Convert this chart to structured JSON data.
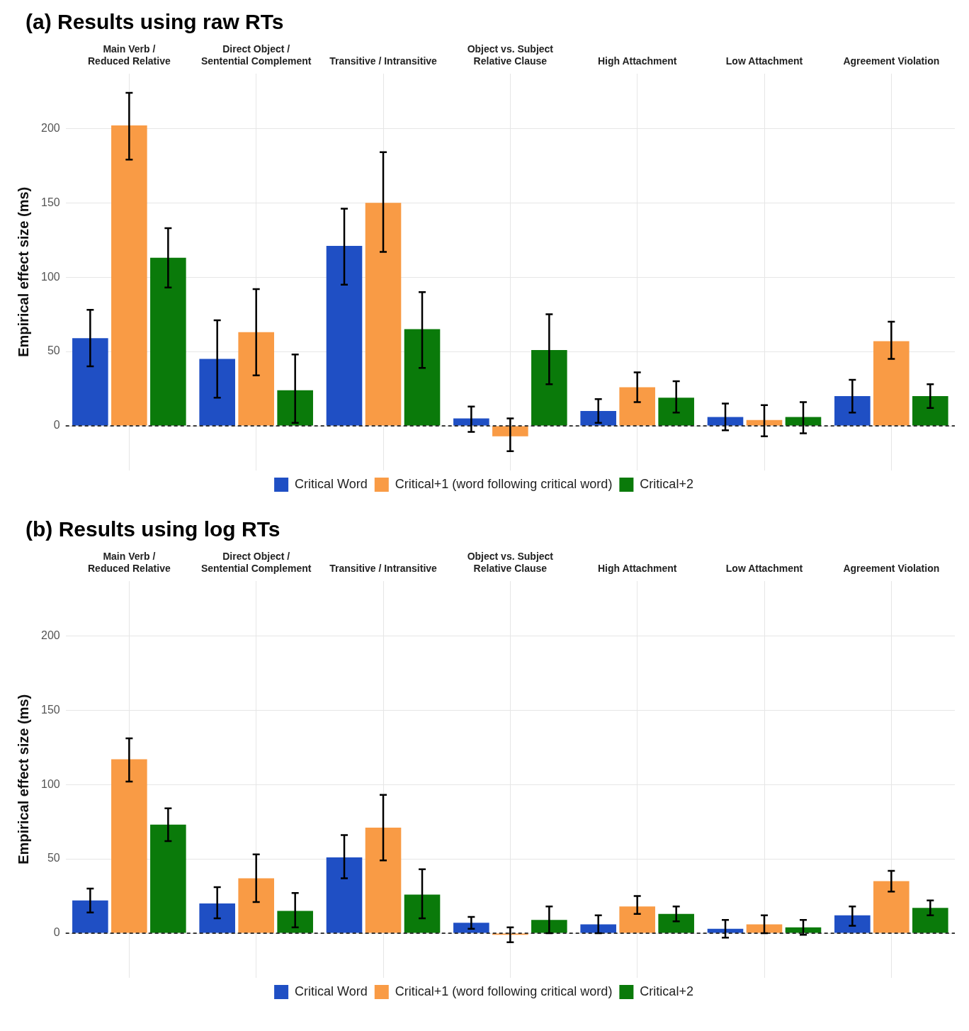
{
  "chart_data": [
    {
      "type": "bar",
      "title": "(a) Results using raw RTs",
      "ylabel": "Empirical effect size (ms)",
      "categories": [
        "Main Verb /\nReduced Relative",
        "Direct Object /\nSentential Complement",
        "Transitive / Intransitive",
        "Object vs. Subject\nRelative Clause",
        "High Attachment",
        "Low Attachment",
        "Agreement Violation"
      ],
      "series": [
        {
          "name": "Critical Word",
          "color": "#1f4fc4",
          "values": [
            59,
            45,
            121,
            5,
            10,
            6,
            20
          ],
          "errors": [
            [
              40,
              78
            ],
            [
              19,
              71
            ],
            [
              95,
              146
            ],
            [
              -4,
              13
            ],
            [
              2,
              18
            ],
            [
              -3,
              15
            ],
            [
              9,
              31
            ]
          ]
        },
        {
          "name": "Critical+1 (word following critical word)",
          "color": "#f99b45",
          "values": [
            202,
            63,
            150,
            -7,
            26,
            4,
            57
          ],
          "errors": [
            [
              179,
              224
            ],
            [
              34,
              92
            ],
            [
              117,
              184
            ],
            [
              -17,
              5
            ],
            [
              16,
              36
            ],
            [
              -7,
              14
            ],
            [
              45,
              70
            ]
          ]
        },
        {
          "name": "Critical+2",
          "color": "#0a7a0a",
          "values": [
            113,
            24,
            65,
            51,
            19,
            6,
            20
          ],
          "errors": [
            [
              93,
              133
            ],
            [
              2,
              48
            ],
            [
              39,
              90
            ],
            [
              28,
              75
            ],
            [
              9,
              30
            ],
            [
              -5,
              16
            ],
            [
              12,
              28
            ]
          ]
        }
      ],
      "ylim": [
        -30,
        237
      ],
      "yticks": [
        0,
        50,
        100,
        150,
        200
      ],
      "grid": true,
      "legend": "bottom",
      "ref_lines": [
        {
          "axis": "y",
          "value": 0,
          "line_style": "dashed",
          "color": "#000000"
        }
      ]
    },
    {
      "type": "bar",
      "title": "(b) Results using log RTs",
      "ylabel": "Empirical effect size (ms)",
      "categories": [
        "Main Verb /\nReduced Relative",
        "Direct Object /\nSentential Complement",
        "Transitive / Intransitive",
        "Object vs. Subject\nRelative Clause",
        "High Attachment",
        "Low Attachment",
        "Agreement Violation"
      ],
      "series": [
        {
          "name": "Critical Word",
          "color": "#1f4fc4",
          "values": [
            22,
            20,
            51,
            7,
            6,
            3,
            12
          ],
          "errors": [
            [
              14,
              30
            ],
            [
              10,
              31
            ],
            [
              37,
              66
            ],
            [
              3,
              11
            ],
            [
              0,
              12
            ],
            [
              -3,
              9
            ],
            [
              5,
              18
            ]
          ]
        },
        {
          "name": "Critical+1 (word following critical word)",
          "color": "#f99b45",
          "values": [
            117,
            37,
            71,
            -1,
            18,
            6,
            35
          ],
          "errors": [
            [
              102,
              131
            ],
            [
              21,
              53
            ],
            [
              49,
              93
            ],
            [
              -6,
              4
            ],
            [
              13,
              25
            ],
            [
              0,
              12
            ],
            [
              28,
              42
            ]
          ]
        },
        {
          "name": "Critical+2",
          "color": "#0a7a0a",
          "values": [
            73,
            15,
            26,
            9,
            13,
            4,
            17
          ],
          "errors": [
            [
              62,
              84
            ],
            [
              4,
              27
            ],
            [
              10,
              43
            ],
            [
              0,
              18
            ],
            [
              8,
              18
            ],
            [
              -1,
              9
            ],
            [
              12,
              22
            ]
          ]
        }
      ],
      "ylim": [
        -30,
        237
      ],
      "yticks": [
        0,
        50,
        100,
        150,
        200
      ],
      "grid": true,
      "legend": "bottom",
      "ref_lines": [
        {
          "axis": "y",
          "value": 0,
          "line_style": "dashed",
          "color": "#000000"
        }
      ]
    }
  ]
}
